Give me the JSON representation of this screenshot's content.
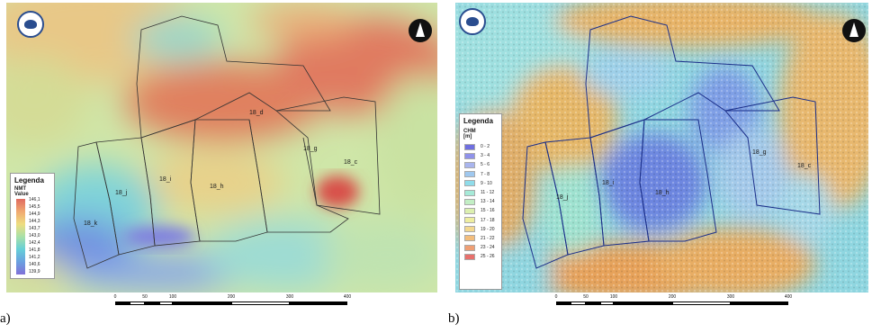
{
  "panels": [
    {
      "id": "a",
      "caption": "a)",
      "legend": {
        "title": "Legenda",
        "layer": "NMT",
        "field": "Value",
        "value_labels": [
          "146,1",
          "145,5",
          "144,9",
          "144,3",
          "143,7",
          "143,0",
          "142,4",
          "141,8",
          "141,2",
          "140,6",
          "139,9"
        ]
      },
      "plots": [
        "18_d",
        "18_g",
        "18_c",
        "18_i",
        "18_h",
        "18_j",
        "18_k"
      ],
      "scale_ticks": [
        "0",
        "50",
        "100",
        "200",
        "300",
        "400"
      ]
    },
    {
      "id": "b",
      "caption": "b)",
      "legend": {
        "title": "Legenda",
        "layer": "CHM",
        "unit": "[m]",
        "classes": [
          {
            "label": "0 - 2",
            "color": "#6f6fe0"
          },
          {
            "label": "3 - 4",
            "color": "#8f92ea"
          },
          {
            "label": "5 - 6",
            "color": "#a9b5ee"
          },
          {
            "label": "7 - 8",
            "color": "#9fc8ef"
          },
          {
            "label": "9 - 10",
            "color": "#8fdcea"
          },
          {
            "label": "11 - 12",
            "color": "#a6ead8"
          },
          {
            "label": "13 - 14",
            "color": "#c2eec4"
          },
          {
            "label": "15 - 16",
            "color": "#dcf0b0"
          },
          {
            "label": "17 - 18",
            "color": "#eeeea0"
          },
          {
            "label": "19 - 20",
            "color": "#f3d890"
          },
          {
            "label": "21 - 22",
            "color": "#f3bd7c"
          },
          {
            "label": "23 - 24",
            "color": "#ef9f74"
          },
          {
            "label": "25 - 26",
            "color": "#e8706c"
          }
        ]
      },
      "plots": [
        "18_g",
        "18_c",
        "18_i",
        "18_h",
        "18_j"
      ],
      "scale_ticks": [
        "0",
        "50",
        "100",
        "200",
        "300",
        "400"
      ]
    }
  ]
}
